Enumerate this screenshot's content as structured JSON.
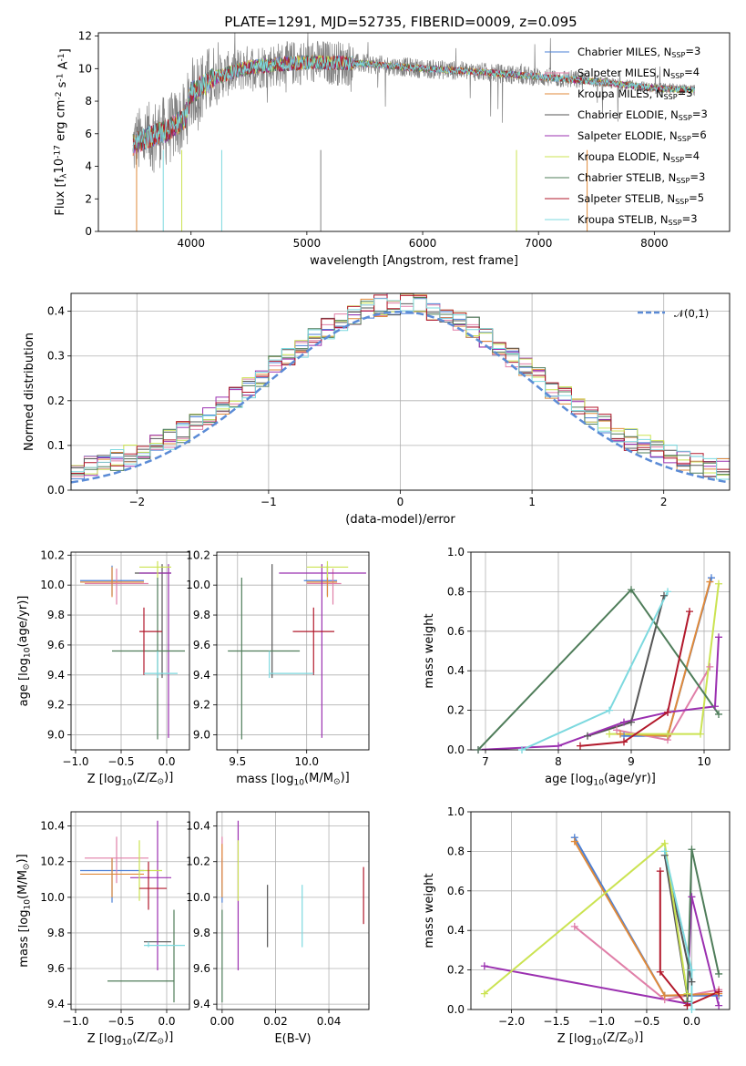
{
  "title": "PLATE=1291, MJD=52735, FIBERID=0009, z=0.095",
  "colors": {
    "chabrier_miles": "#4a7fd6",
    "salpeter_miles": "#e07fa8",
    "kroupa_miles": "#e08a3a",
    "chabrier_elodie": "#555555",
    "salpeter_elodie": "#9b30b0",
    "kroupa_elodie": "#cbe352",
    "chabrier_stelib": "#4f7d5a",
    "salpeter_stelib": "#b2182b",
    "kroupa_stelib": "#7dd9df",
    "normal": "#5b8bd6",
    "data": "#808080"
  },
  "chart_data": [
    {
      "type": "line",
      "title": "PLATE=1291, MJD=52735, FIBERID=0009, z=0.095",
      "xlabel": "wavelength [Angstrom, rest frame]",
      "ylabel": "Flux [f$_\\lambda$10$^{-17}$ erg cm$^{-2}$ s$^{-1}$ A$^{-1}$]",
      "xlim": [
        3200,
        8650
      ],
      "ylim": [
        0,
        12.2
      ],
      "xticks": [
        4000,
        5000,
        6000,
        7000,
        8000
      ],
      "yticks": [
        0,
        2,
        4,
        6,
        8,
        10,
        12
      ],
      "legend_position": "top-right",
      "legend": [
        "Chabrier MILES, N$_{SSP}$=3",
        "Salpeter MILES, N$_{SSP}$=4",
        "Kroupa MILES, N$_{SSP}$=3",
        "Chabrier ELODIE, N$_{SSP}$=3",
        "Salpeter ELODIE, N$_{SSP}$=6",
        "Kroupa ELODIE, N$_{SSP}$=4",
        "Chabrier STELIB, N$_{SSP}$=3",
        "Salpeter STELIB, N$_{SSP}$=5",
        "Kroupa STELIB, N$_{SSP}$=3"
      ],
      "continuum": {
        "x": [
          3500,
          3700,
          3800,
          3950,
          4000,
          4200,
          4500,
          5000,
          5500,
          6000,
          6500,
          7000,
          7500,
          8000,
          8300
        ],
        "y": [
          5.3,
          6.0,
          6.2,
          7.0,
          8.5,
          9.4,
          10.1,
          10.4,
          10.3,
          10.0,
          9.8,
          9.5,
          9.2,
          8.8,
          8.7
        ]
      }
    },
    {
      "type": "line",
      "xlabel": "(data-model)/error",
      "ylabel": "Normed distribution",
      "xlim": [
        -2.5,
        2.5
      ],
      "ylim": [
        0,
        0.44
      ],
      "xticks": [
        -2,
        -1,
        0,
        1,
        2
      ],
      "yticks": [
        0.0,
        0.1,
        0.2,
        0.3,
        0.4
      ],
      "legend_position": "top-right",
      "legend": [
        "$\\mathcal{N}(0,1)$"
      ],
      "grid": true
    },
    {
      "type": "scatter",
      "xlabel": "Z [log$_{10}$(Z/Z$_\\odot$)]",
      "ylabel": "age  [log$_{10}$(age/yr)]",
      "xlim": [
        -1.05,
        0.25
      ],
      "ylim": [
        8.9,
        10.22
      ],
      "xticks": [
        -1.0,
        -0.5,
        0.0
      ],
      "yticks": [
        9.0,
        9.2,
        9.4,
        9.6,
        9.8,
        10.0,
        10.2
      ],
      "grid": true,
      "points": [
        {
          "x": -0.6,
          "y": 10.03,
          "ex": [
            -0.95,
            -0.25
          ],
          "ey": [
            9.93,
            10.13
          ],
          "c": "chabrier_miles"
        },
        {
          "x": -0.55,
          "y": 10.01,
          "ex": [
            -0.9,
            -0.2
          ],
          "ey": [
            9.87,
            10.11
          ],
          "c": "salpeter_miles"
        },
        {
          "x": -0.6,
          "y": 10.02,
          "ex": [
            -0.95,
            -0.25
          ],
          "ey": [
            9.92,
            10.12
          ],
          "c": "kroupa_miles"
        },
        {
          "x": -0.05,
          "y": 10.08,
          "ex": [
            -0.35,
            0.05
          ],
          "ey": [
            9.38,
            10.14
          ],
          "c": "chabrier_elodie"
        },
        {
          "x": 0.02,
          "y": 10.08,
          "ex": [
            -0.3,
            0.05
          ],
          "ey": [
            8.98,
            10.14
          ],
          "c": "salpeter_elodie"
        },
        {
          "x": -0.1,
          "y": 10.12,
          "ex": [
            -0.3,
            0.05
          ],
          "ey": [
            10.05,
            10.16
          ],
          "c": "kroupa_elodie"
        },
        {
          "x": -0.1,
          "y": 9.56,
          "ex": [
            -0.6,
            0.2
          ],
          "ey": [
            8.97,
            10.05
          ],
          "c": "chabrier_stelib"
        },
        {
          "x": -0.25,
          "y": 9.69,
          "ex": [
            -0.3,
            -0.05
          ],
          "ey": [
            9.4,
            9.85
          ],
          "c": "salpeter_stelib"
        },
        {
          "x": -0.1,
          "y": 9.41,
          "ex": [
            -0.25,
            0.12
          ],
          "ey": [
            9.38,
            9.56
          ],
          "c": "kroupa_stelib"
        }
      ]
    },
    {
      "type": "scatter",
      "xlabel": "mass [log$_{10}$(M/M$_\\odot$)]",
      "xlim": [
        9.35,
        10.45
      ],
      "ylim": [
        8.9,
        10.22
      ],
      "xticks": [
        9.5,
        10.0
      ],
      "yticks": [
        9.0,
        9.2,
        9.4,
        9.6,
        9.8,
        10.0,
        10.2
      ],
      "grid": true,
      "points": [
        {
          "x": 10.15,
          "y": 10.03,
          "ex": [
            9.98,
            10.22
          ],
          "ey": [
            9.93,
            10.13
          ],
          "c": "chabrier_miles"
        },
        {
          "x": 10.19,
          "y": 10.01,
          "ex": [
            10.0,
            10.25
          ],
          "ey": [
            9.87,
            10.11
          ],
          "c": "salpeter_miles"
        },
        {
          "x": 10.15,
          "y": 10.02,
          "ex": [
            10.0,
            10.22
          ],
          "ey": [
            9.92,
            10.12
          ],
          "c": "kroupa_miles"
        },
        {
          "x": 9.75,
          "y": 10.08,
          "ex": [
            9.75,
            9.75
          ],
          "ey": [
            9.38,
            10.14
          ],
          "c": "chabrier_elodie"
        },
        {
          "x": 10.11,
          "y": 10.08,
          "ex": [
            9.8,
            10.43
          ],
          "ey": [
            8.98,
            10.14
          ],
          "c": "salpeter_elodie"
        },
        {
          "x": 10.15,
          "y": 10.12,
          "ex": [
            10.0,
            10.3
          ],
          "ey": [
            10.05,
            10.16
          ],
          "c": "kroupa_elodie"
        },
        {
          "x": 9.53,
          "y": 9.56,
          "ex": [
            9.43,
            9.95
          ],
          "ey": [
            8.97,
            10.05
          ],
          "c": "chabrier_stelib"
        },
        {
          "x": 10.05,
          "y": 9.69,
          "ex": [
            9.9,
            10.2
          ],
          "ey": [
            9.4,
            9.85
          ],
          "c": "salpeter_stelib"
        },
        {
          "x": 9.73,
          "y": 9.41,
          "ex": [
            9.73,
            10.05
          ],
          "ey": [
            9.38,
            9.56
          ],
          "c": "kroupa_stelib"
        }
      ]
    },
    {
      "type": "line",
      "xlabel": "age  [log$_{10}$(age/yr)]",
      "ylabel": "mass weight",
      "xlim": [
        6.8,
        10.35
      ],
      "ylim": [
        0,
        1.0
      ],
      "xticks": [
        7,
        8,
        9,
        10
      ],
      "yticks": [
        0.0,
        0.2,
        0.4,
        0.6,
        0.8,
        1.0
      ],
      "grid": true,
      "series": [
        {
          "c": "chabrier_miles",
          "x": [
            8.9,
            9.5,
            10.1
          ],
          "y": [
            0.07,
            0.07,
            0.87
          ]
        },
        {
          "c": "salpeter_miles",
          "x": [
            8.8,
            9.5,
            10.08
          ],
          "y": [
            0.1,
            0.05,
            0.42
          ]
        },
        {
          "c": "kroupa_miles",
          "x": [
            8.85,
            9.5,
            10.08
          ],
          "y": [
            0.08,
            0.07,
            0.85
          ]
        },
        {
          "c": "chabrier_elodie",
          "x": [
            8.4,
            9.0,
            9.45
          ],
          "y": [
            0.07,
            0.14,
            0.78
          ]
        },
        {
          "c": "salpeter_elodie",
          "x": [
            6.9,
            8.0,
            8.9,
            9.5,
            10.15,
            10.2
          ],
          "y": [
            0.0,
            0.02,
            0.14,
            0.19,
            0.22,
            0.57
          ]
        },
        {
          "c": "kroupa_elodie",
          "x": [
            8.7,
            9.5,
            9.95,
            10.2
          ],
          "y": [
            0.08,
            0.08,
            0.08,
            0.84
          ]
        },
        {
          "c": "chabrier_stelib",
          "x": [
            6.9,
            9.0,
            10.2
          ],
          "y": [
            0.0,
            0.81,
            0.18
          ]
        },
        {
          "c": "salpeter_stelib",
          "x": [
            8.3,
            8.9,
            9.5,
            9.8
          ],
          "y": [
            0.02,
            0.04,
            0.19,
            0.7
          ]
        },
        {
          "c": "kroupa_stelib",
          "x": [
            7.5,
            8.7,
            9.5
          ],
          "y": [
            0.0,
            0.2,
            0.8
          ]
        }
      ]
    },
    {
      "type": "scatter",
      "xlabel": "Z [log$_{10}$(Z/Z$_\\odot$)]",
      "ylabel": "mass [log$_{10}$(M/M$_\\odot$)]",
      "xlim": [
        -1.05,
        0.25
      ],
      "ylim": [
        9.37,
        10.48
      ],
      "xticks": [
        -1.0,
        -0.5,
        0.0
      ],
      "yticks": [
        9.4,
        9.6,
        9.8,
        10.0,
        10.2,
        10.4
      ],
      "grid": true,
      "points": [
        {
          "x": -0.6,
          "y": 10.15,
          "ex": [
            -0.95,
            -0.25
          ],
          "ey": [
            9.97,
            10.22
          ],
          "c": "chabrier_miles"
        },
        {
          "x": -0.55,
          "y": 10.22,
          "ex": [
            -0.9,
            -0.2
          ],
          "ey": [
            10.08,
            10.34
          ],
          "c": "salpeter_miles"
        },
        {
          "x": -0.6,
          "y": 10.13,
          "ex": [
            -0.95,
            -0.25
          ],
          "ey": [
            10.0,
            10.22
          ],
          "c": "kroupa_miles"
        },
        {
          "x": -0.05,
          "y": 9.75,
          "ex": [
            -0.25,
            0.05
          ],
          "ey": [
            9.75,
            9.75
          ],
          "c": "chabrier_elodie"
        },
        {
          "x": -0.1,
          "y": 10.11,
          "ex": [
            -0.4,
            0.05
          ],
          "ey": [
            9.59,
            10.43
          ],
          "c": "salpeter_elodie"
        },
        {
          "x": -0.3,
          "y": 10.15,
          "ex": [
            -0.3,
            -0.05
          ],
          "ey": [
            9.98,
            10.32
          ],
          "c": "kroupa_elodie"
        },
        {
          "x": 0.08,
          "y": 9.53,
          "ex": [
            -0.65,
            0.08
          ],
          "ey": [
            9.41,
            9.93
          ],
          "c": "chabrier_stelib"
        },
        {
          "x": -0.2,
          "y": 10.05,
          "ex": [
            -0.3,
            0.0
          ],
          "ey": [
            9.93,
            10.2
          ],
          "c": "salpeter_stelib"
        },
        {
          "x": -0.2,
          "y": 9.73,
          "ex": [
            -0.25,
            0.2
          ],
          "ey": [
            9.72,
            9.75
          ],
          "c": "kroupa_stelib"
        }
      ]
    },
    {
      "type": "scatter",
      "xlabel": "E(B-V)",
      "xlim": [
        -0.002,
        0.055
      ],
      "ylim": [
        9.37,
        10.48
      ],
      "xticks": [
        0.0,
        0.02,
        0.04
      ],
      "yticks": [
        9.4,
        9.6,
        9.8,
        10.0,
        10.2,
        10.4
      ],
      "grid": true,
      "points": [
        {
          "x": 0.0,
          "ey": [
            9.97,
            10.22
          ],
          "c": "chabrier_miles"
        },
        {
          "x": 0.0,
          "ey": [
            10.08,
            10.34
          ],
          "c": "salpeter_miles"
        },
        {
          "x": 0.0,
          "ey": [
            10.0,
            10.3
          ],
          "c": "kroupa_miles"
        },
        {
          "x": 0.017,
          "ey": [
            9.72,
            10.07
          ],
          "c": "chabrier_elodie"
        },
        {
          "x": 0.006,
          "ey": [
            9.59,
            10.43
          ],
          "c": "salpeter_elodie"
        },
        {
          "x": 0.006,
          "ey": [
            9.98,
            10.32
          ],
          "c": "kroupa_elodie"
        },
        {
          "x": 0.0,
          "ey": [
            9.41,
            9.93
          ],
          "c": "chabrier_stelib"
        },
        {
          "x": 0.053,
          "ey": [
            9.85,
            10.17
          ],
          "c": "salpeter_stelib"
        },
        {
          "x": 0.03,
          "ey": [
            9.72,
            10.07
          ],
          "c": "kroupa_stelib"
        }
      ]
    },
    {
      "type": "line",
      "xlabel": "Z [log$_{10}$(Z/Z$_\\odot$)]",
      "ylabel": "mass weight",
      "xlim": [
        -2.45,
        0.42
      ],
      "ylim": [
        0,
        1.0
      ],
      "xticks": [
        -2.0,
        -1.5,
        -1.0,
        -0.5,
        0.0
      ],
      "yticks": [
        0.0,
        0.2,
        0.4,
        0.6,
        0.8,
        1.0
      ],
      "grid": true,
      "series": [
        {
          "c": "chabrier_miles",
          "x": [
            -1.3,
            -0.3,
            0.3
          ],
          "y": [
            0.87,
            0.07,
            0.07
          ]
        },
        {
          "c": "salpeter_miles",
          "x": [
            -1.3,
            -0.3,
            0.3
          ],
          "y": [
            0.42,
            0.05,
            0.1
          ]
        },
        {
          "c": "kroupa_miles",
          "x": [
            -1.3,
            -0.3,
            0.3
          ],
          "y": [
            0.85,
            0.07,
            0.08
          ]
        },
        {
          "c": "chabrier_elodie",
          "x": [
            0.0,
            -0.3,
            -0.05
          ],
          "y": [
            0.14,
            0.78,
            0.07
          ]
        },
        {
          "c": "salpeter_elodie",
          "x": [
            -2.3,
            -0.05,
            0.0,
            0.3
          ],
          "y": [
            0.22,
            0.03,
            0.57,
            0.02
          ]
        },
        {
          "c": "kroupa_elodie",
          "x": [
            -2.3,
            -0.3,
            -0.05
          ],
          "y": [
            0.08,
            0.84,
            0.08
          ]
        },
        {
          "c": "chabrier_stelib",
          "x": [
            -0.05,
            0.0,
            0.3
          ],
          "y": [
            0.04,
            0.81,
            0.18
          ]
        },
        {
          "c": "salpeter_stelib",
          "x": [
            -0.35,
            -0.35,
            -0.05,
            0.3
          ],
          "y": [
            0.7,
            0.19,
            0.02,
            0.09
          ]
        },
        {
          "c": "kroupa_stelib",
          "x": [
            -0.3,
            0.0,
            0.0
          ],
          "y": [
            0.8,
            0.2,
            0.0
          ]
        }
      ]
    }
  ]
}
